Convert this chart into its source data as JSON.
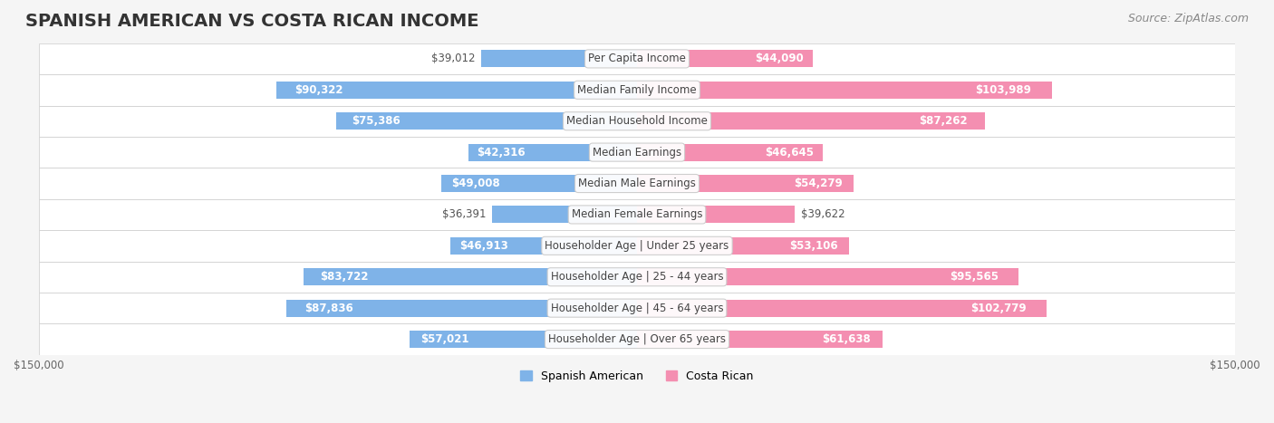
{
  "title": "SPANISH AMERICAN VS COSTA RICAN INCOME",
  "source": "Source: ZipAtlas.com",
  "categories": [
    "Per Capita Income",
    "Median Family Income",
    "Median Household Income",
    "Median Earnings",
    "Median Male Earnings",
    "Median Female Earnings",
    "Householder Age | Under 25 years",
    "Householder Age | 25 - 44 years",
    "Householder Age | 45 - 64 years",
    "Householder Age | Over 65 years"
  ],
  "spanish_american": [
    39012,
    90322,
    75386,
    42316,
    49008,
    36391,
    46913,
    83722,
    87836,
    57021
  ],
  "costa_rican": [
    44090,
    103989,
    87262,
    46645,
    54279,
    39622,
    53106,
    95565,
    102779,
    61638
  ],
  "max_value": 150000,
  "bar_color_sa": "#7fb3e8",
  "bar_color_cr": "#f48fb1",
  "label_color_sa_dark": "#5a8fc0",
  "label_color_cr_dark": "#e0507a",
  "bg_color": "#f5f5f5",
  "row_bg_color": "#ffffff",
  "row_alt_bg_color": "#f0f0f0",
  "title_fontsize": 14,
  "source_fontsize": 9,
  "label_fontsize": 8.5,
  "category_fontsize": 8.5,
  "legend_fontsize": 9,
  "axis_label_fontsize": 8.5
}
